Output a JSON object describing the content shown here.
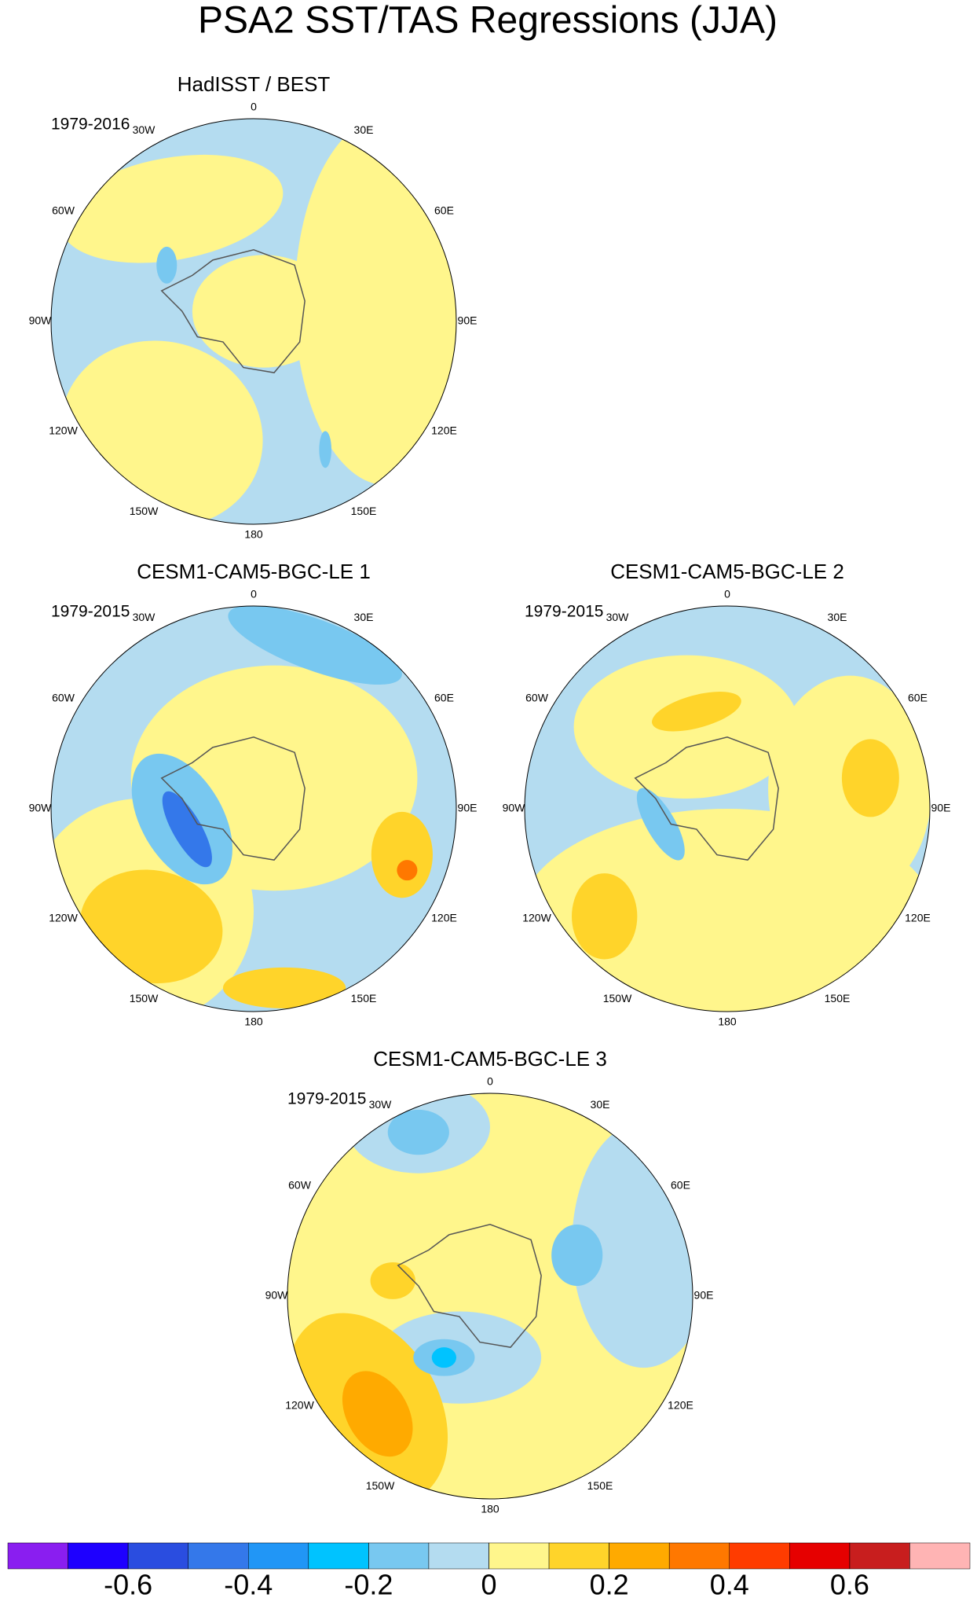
{
  "title": "PSA2 SST/TAS Regressions (JJA)",
  "panels": [
    {
      "title": "HadISST / BEST",
      "period": "1979-2016"
    },
    {
      "title": "CESM1-CAM5-BGC-LE 1",
      "period": "1979-2015"
    },
    {
      "title": "CESM1-CAM5-BGC-LE 2",
      "period": "1979-2015"
    },
    {
      "title": "CESM1-CAM5-BGC-LE 3",
      "period": "1979-2015"
    }
  ],
  "longitude_labels": [
    "0",
    "30E",
    "60E",
    "90E",
    "120E",
    "150E",
    "180",
    "150W",
    "120W",
    "90W",
    "60W",
    "30W"
  ],
  "colorbar": {
    "colors": [
      "#8a1ef0",
      "#1e00ff",
      "#2a4de0",
      "#3478ea",
      "#2196f6",
      "#00c3ff",
      "#78c8f0",
      "#b4dcf0",
      "#fff68c",
      "#ffd42a",
      "#ffaa00",
      "#ff7800",
      "#ff3c00",
      "#e60000",
      "#c81e1e",
      "#ffb4b4"
    ],
    "range": [
      -0.8,
      0.8
    ],
    "ticks": [
      -0.6,
      -0.4,
      -0.2,
      0,
      0.2,
      0.4,
      0.6
    ]
  }
}
